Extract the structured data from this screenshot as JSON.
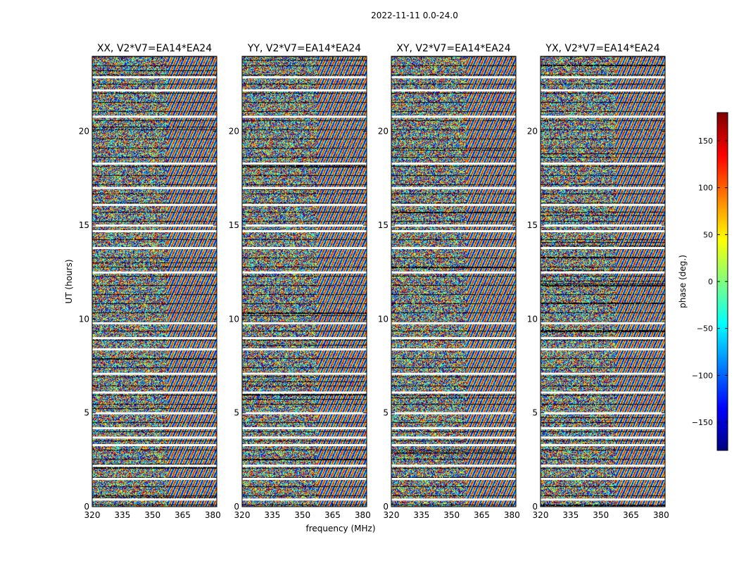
{
  "chart_data": {
    "type": "heatmap",
    "title": "2022-11-11 0.0-24.0",
    "xlabel": "frequency (MHz)",
    "ylabel": "UT (hours)",
    "xlim": [
      320,
      382
    ],
    "ylim": [
      0,
      24
    ],
    "xticks": [
      320,
      335,
      350,
      365,
      380
    ],
    "yticks": [
      0,
      5,
      10,
      15,
      20
    ],
    "panels": [
      {
        "title": "XX, V2*V7=EA14*EA24",
        "pol": "XX"
      },
      {
        "title": "YY, V2*V7=EA14*EA24",
        "pol": "YY"
      },
      {
        "title": "XY, V2*V7=EA14*EA24",
        "pol": "XY"
      },
      {
        "title": "YX, V2*V7=EA14*EA24",
        "pol": "YX"
      }
    ],
    "colorbar": {
      "label": "phase (deg.)",
      "range": [
        -180,
        180
      ],
      "ticks": [
        -150,
        -100,
        -50,
        0,
        50,
        100,
        150
      ],
      "colormap": "jet"
    },
    "blank_rows_ut": [
      0.4,
      1.5,
      2.2,
      3.3,
      3.7,
      4.2,
      5.0,
      6.1,
      7.1,
      8.4,
      9.0,
      9.8,
      12.5,
      13.8,
      14.7,
      15.0,
      16.1,
      17.0,
      18.3,
      20.8,
      22.2,
      22.9
    ]
  }
}
